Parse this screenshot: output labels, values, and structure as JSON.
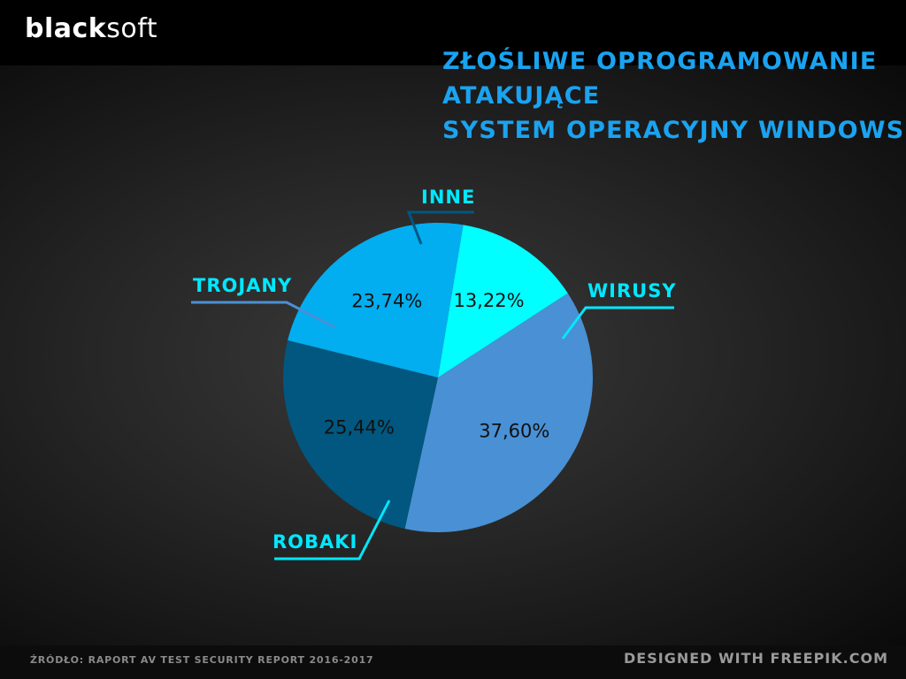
{
  "brand": {
    "logo_bold": "blac",
    "logo_mid": "k",
    "logo_light": "soft"
  },
  "title_lines": [
    "ZŁOŚLIWE OPROGRAMOWANIE",
    "ATAKUJĄCE",
    "SYSTEM OPERACYJNY WINDOWS"
  ],
  "footer": {
    "source": "ŹRÓDŁO: RAPORT AV TEST SECURITY REPORT 2016-2017",
    "credit": "DESIGNED WITH FREEPIK.COM"
  },
  "chart_data": {
    "type": "pie",
    "slices": [
      {
        "name": "WIRUSY",
        "value": 37.6,
        "label": "37,60%",
        "color": "#4a90d4",
        "legend_color": "#00e8ff",
        "legend_line_color": "#00e8ff"
      },
      {
        "name": "ROBAKI",
        "value": 25.44,
        "label": "25,44%",
        "color": "#01577f",
        "legend_color": "#00e8ff",
        "legend_line_color": "#00e8ff"
      },
      {
        "name": "TROJANY",
        "value": 23.74,
        "label": "23,74%",
        "color": "#02aef0",
        "legend_color": "#00e8ff",
        "legend_line_color": "#4a90d4"
      },
      {
        "name": "INNE",
        "value": 13.22,
        "label": "13,22%",
        "color": "#00ffff",
        "legend_color": "#00e8ff",
        "legend_line_color": "#01577f"
      }
    ],
    "legend_placement": "around-pie"
  }
}
